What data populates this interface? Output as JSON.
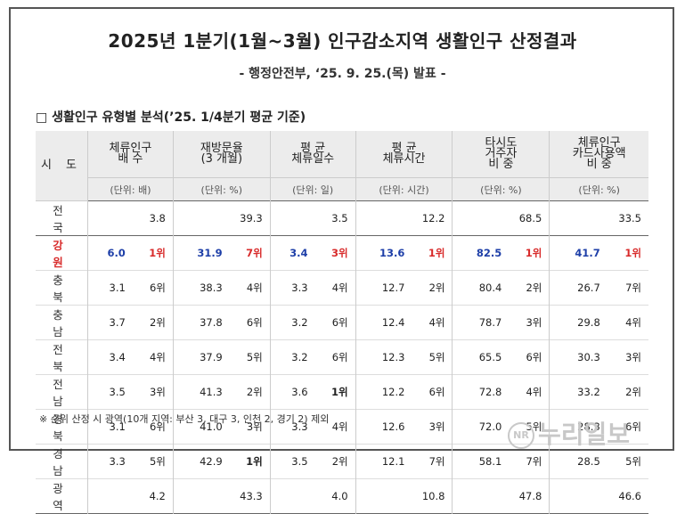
{
  "title": "2025년 1분기(1월~3월) 인구감소지역 생활인구 산정결과",
  "subtitle": "- 행정안전부, ‘25. 9. 25.(목) 발표 -",
  "section_title": "□ 생활인구 유형별 분석(’25. 1/4분기 평균 기준)",
  "table": {
    "region_header": "시 도",
    "columns": [
      {
        "label": "체류인구\n배 수",
        "unit": "(단위: 배)"
      },
      {
        "label": "재방문율\n(3 개월)",
        "unit": "(단위: %)"
      },
      {
        "label": "평 균\n체류일수",
        "unit": "(단위: 일)"
      },
      {
        "label": "평 균\n체류시간",
        "unit": "(단위: 시간)"
      },
      {
        "label": "타시도\n거주자\n비 중",
        "unit": "(단위: %)"
      },
      {
        "label": "체류인구\n카드사용액\n비 중",
        "unit": "(단위: %)"
      }
    ],
    "rows": [
      {
        "region": "전 국",
        "type": "total",
        "values": [
          "3.8",
          "39.3",
          "3.5",
          "12.2",
          "68.5",
          "33.5"
        ]
      },
      {
        "region": "강 원",
        "type": "gw",
        "cells": [
          [
            "6.0",
            "1위"
          ],
          [
            "31.9",
            "7위"
          ],
          [
            "3.4",
            "3위"
          ],
          [
            "13.6",
            "1위"
          ],
          [
            "82.5",
            "1위"
          ],
          [
            "41.7",
            "1위"
          ]
        ]
      },
      {
        "region": "충 북",
        "type": "rank",
        "cells": [
          [
            "3.1",
            "6위"
          ],
          [
            "38.3",
            "4위"
          ],
          [
            "3.3",
            "4위"
          ],
          [
            "12.7",
            "2위"
          ],
          [
            "80.4",
            "2위"
          ],
          [
            "26.7",
            "7위"
          ]
        ]
      },
      {
        "region": "충 남",
        "type": "rank",
        "cells": [
          [
            "3.7",
            "2위"
          ],
          [
            "37.8",
            "6위"
          ],
          [
            "3.2",
            "6위"
          ],
          [
            "12.4",
            "4위"
          ],
          [
            "78.7",
            "3위"
          ],
          [
            "29.8",
            "4위"
          ]
        ]
      },
      {
        "region": "전 북",
        "type": "rank",
        "cells": [
          [
            "3.4",
            "4위"
          ],
          [
            "37.9",
            "5위"
          ],
          [
            "3.2",
            "6위"
          ],
          [
            "12.3",
            "5위"
          ],
          [
            "65.5",
            "6위"
          ],
          [
            "30.3",
            "3위"
          ]
        ]
      },
      {
        "region": "전 남",
        "type": "rank",
        "cells": [
          [
            "3.5",
            "3위"
          ],
          [
            "41.3",
            "2위"
          ],
          [
            "3.6",
            "1위"
          ],
          [
            "12.2",
            "6위"
          ],
          [
            "72.8",
            "4위"
          ],
          [
            "33.2",
            "2위"
          ]
        ]
      },
      {
        "region": "경 북",
        "type": "rank",
        "cells": [
          [
            "3.1",
            "6위"
          ],
          [
            "41.0",
            "3위"
          ],
          [
            "3.3",
            "4위"
          ],
          [
            "12.6",
            "3위"
          ],
          [
            "72.0",
            "5위"
          ],
          [
            "28.3",
            "6위"
          ]
        ]
      },
      {
        "region": "경 남",
        "type": "rank",
        "cells": [
          [
            "3.3",
            "5위"
          ],
          [
            "42.9",
            "1위"
          ],
          [
            "3.5",
            "2위"
          ],
          [
            "12.1",
            "7위"
          ],
          [
            "58.1",
            "7위"
          ],
          [
            "28.5",
            "5위"
          ]
        ]
      },
      {
        "region": "광 역",
        "type": "total",
        "values": [
          "4.2",
          "43.3",
          "4.0",
          "10.8",
          "47.8",
          "46.6"
        ]
      }
    ]
  },
  "note": "※ 순위 산정 시 광역(10개 지역: 부산 3, 대구 3, 인천 2, 경기 2) 제외",
  "watermark": {
    "logo": "NR",
    "text": "누리일보"
  }
}
